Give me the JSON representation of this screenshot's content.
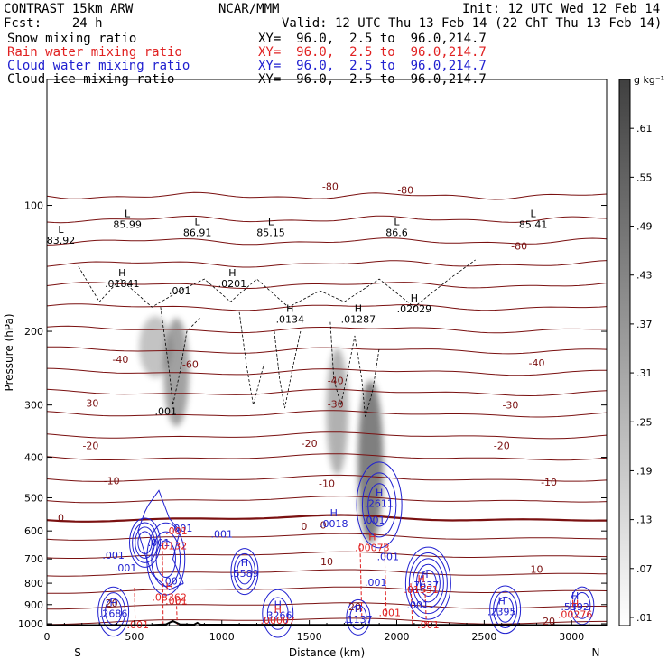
{
  "header": {
    "title_left": "CONTRAST 15km ARW",
    "title_center": "NCAR/MMM",
    "init": "Init: 12 UTC Wed 12 Feb 14",
    "fcst": "Fcst:    24 h",
    "valid": "Valid: 12 UTC Thu 13 Feb 14 (22 ChT Thu 13 Feb 14)"
  },
  "fields": [
    {
      "name": "Snow mixing ratio",
      "xy": "XY=  96.0,  2.5 to  96.0,214.7",
      "color": "#000000"
    },
    {
      "name": "Rain water mixing ratio",
      "xy": "XY=  96.0,  2.5 to  96.0,214.7",
      "color": "#e02020"
    },
    {
      "name": "Cloud water mixing ratio",
      "xy": "XY=  96.0,  2.5 to  96.0,214.7",
      "color": "#2020d0"
    },
    {
      "name": "Cloud ice mixing ratio",
      "xy": "XY=  96.0,  2.5 to  96.0,214.7",
      "color": "#000000"
    }
  ],
  "chart_data": {
    "type": "contour cross-section",
    "xlabel": "Distance (km)",
    "ylabel": "Pressure (hPa)",
    "xlim": [
      0,
      3200
    ],
    "ylim": [
      1010,
      50
    ],
    "y_scale": "log",
    "x_ticks": [
      0,
      500,
      1000,
      1500,
      2000,
      2500,
      3000
    ],
    "y_ticks": [
      100,
      200,
      300,
      400,
      500,
      600,
      700,
      800,
      900,
      1000
    ],
    "x_end_labels": {
      "left": "S",
      "right": "N"
    },
    "colorbar": {
      "unit": "g kg⁻¹",
      "ticks": [
        ".01",
        ".07",
        ".13",
        ".19",
        ".25",
        ".31",
        ".37",
        ".43",
        ".49",
        ".55",
        ".61"
      ],
      "values": [
        0.01,
        0.07,
        0.13,
        0.19,
        0.25,
        0.31,
        0.37,
        0.43,
        0.49,
        0.55,
        0.61
      ],
      "max": 0.67
    },
    "temperature_contours": [
      {
        "label": "-80",
        "x": 1620,
        "p": 90
      },
      {
        "label": "-80",
        "x": 2700,
        "p": 125
      },
      {
        "label": "-80",
        "x": 2050,
        "p": 92
      },
      {
        "label": "-60",
        "x": 820,
        "p": 240
      },
      {
        "label": "-40",
        "x": 420,
        "p": 233
      },
      {
        "label": "-40",
        "x": 1650,
        "p": 262
      },
      {
        "label": "-40",
        "x": 2800,
        "p": 238
      },
      {
        "label": "-30",
        "x": 250,
        "p": 297
      },
      {
        "label": "-30",
        "x": 1650,
        "p": 298
      },
      {
        "label": "-30",
        "x": 2650,
        "p": 300
      },
      {
        "label": "-20",
        "x": 250,
        "p": 375
      },
      {
        "label": "-20",
        "x": 1500,
        "p": 370
      },
      {
        "label": "-20",
        "x": 2600,
        "p": 375
      },
      {
        "label": "-10",
        "x": 370,
        "p": 455
      },
      {
        "label": "-10",
        "x": 1600,
        "p": 462
      },
      {
        "label": "-10",
        "x": 2870,
        "p": 458
      },
      {
        "label": "0",
        "x": 80,
        "p": 558
      },
      {
        "label": "0",
        "x": 1470,
        "p": 585
      },
      {
        "label": "0",
        "x": 1580,
        "p": 580
      },
      {
        "label": "10",
        "x": 1600,
        "p": 710
      },
      {
        "label": "10",
        "x": 2800,
        "p": 740
      },
      {
        "label": "20",
        "x": 370,
        "p": 893
      },
      {
        "label": "20",
        "x": 1760,
        "p": 910
      },
      {
        "label": "20",
        "x": 2870,
        "p": 985
      }
    ],
    "extrema_snow_ice": [
      {
        "type": "L",
        "value": "83.92",
        "x": 80,
        "p": 120
      },
      {
        "type": "L",
        "value": "85.99",
        "x": 460,
        "p": 110
      },
      {
        "type": "L",
        "value": "86.91",
        "x": 860,
        "p": 115
      },
      {
        "type": "L",
        "value": "85.15",
        "x": 1280,
        "p": 115
      },
      {
        "type": "L",
        "value": "86.6",
        "x": 2000,
        "p": 115
      },
      {
        "type": "L",
        "value": "85.41",
        "x": 2780,
        "p": 110
      },
      {
        "type": "H",
        "value": ".01841",
        "x": 430,
        "p": 152
      },
      {
        "type": "H",
        "value": ".0201",
        "x": 1060,
        "p": 152
      },
      {
        "type": "H",
        "value": ".0134",
        "x": 1390,
        "p": 185
      },
      {
        "type": "H",
        "value": ".01287",
        "x": 1780,
        "p": 185
      },
      {
        "type": "H",
        "value": ".02029",
        "x": 2100,
        "p": 175
      },
      {
        "type": "",
        "value": ".001",
        "x": 760,
        "p": 160
      },
      {
        "type": "",
        "value": ".001",
        "x": 680,
        "p": 310
      }
    ],
    "extrema_cloud_water": [
      {
        "type": "H",
        "value": ".0018",
        "x": 1640,
        "p": 570
      },
      {
        "type": "H",
        "value": ".2611",
        "x": 1900,
        "p": 510
      },
      {
        "type": "H",
        "value": ".5589",
        "x": 1130,
        "p": 750
      },
      {
        "type": "H",
        "value": ".7637",
        "x": 2160,
        "p": 800
      },
      {
        "type": "H",
        "value": ".2686",
        "x": 380,
        "p": 935
      },
      {
        "type": "H",
        "value": ".3266",
        "x": 1320,
        "p": 945
      },
      {
        "type": "H",
        "value": ".1137",
        "x": 1780,
        "p": 965
      },
      {
        "type": "H",
        "value": ".2395",
        "x": 2600,
        "p": 925
      },
      {
        "type": "H",
        "value": ".5392",
        "x": 3020,
        "p": 900
      },
      {
        "type": "",
        "value": ".001",
        "x": 380,
        "p": 685
      },
      {
        "type": "",
        "value": ".001",
        "x": 450,
        "p": 735
      },
      {
        "type": "",
        "value": ".001",
        "x": 1000,
        "p": 610
      },
      {
        "type": "",
        "value": ".001",
        "x": 720,
        "p": 790
      },
      {
        "type": "",
        "value": ".001",
        "x": 1870,
        "p": 565
      },
      {
        "type": "",
        "value": ".001",
        "x": 1950,
        "p": 690
      },
      {
        "type": "",
        "value": ".001",
        "x": 1880,
        "p": 795
      },
      {
        "type": "",
        "value": ".001",
        "x": 2120,
        "p": 900
      },
      {
        "type": "",
        "value": ".001",
        "x": 770,
        "p": 590
      },
      {
        "type": "",
        "value": ".001",
        "x": 640,
        "p": 640
      }
    ],
    "extrema_rain_water": [
      {
        "type": "H",
        "value": ".00073",
        "x": 1860,
        "p": 650
      },
      {
        "type": "H",
        "value": ".08362",
        "x": 700,
        "p": 855
      },
      {
        "type": "H",
        "value": ".01551",
        "x": 2140,
        "p": 820
      },
      {
        "type": "H",
        "value": ".00007",
        "x": 1320,
        "p": 970
      },
      {
        "type": "H",
        "value": ".00276",
        "x": 3020,
        "p": 940
      },
      {
        "type": "",
        "value": ".001",
        "x": 740,
        "p": 600
      },
      {
        "type": "",
        "value": ".001",
        "x": 740,
        "p": 880
      },
      {
        "type": "",
        "value": ".001",
        "x": 520,
        "p": 1005
      },
      {
        "type": "",
        "value": ".001",
        "x": 1960,
        "p": 940
      },
      {
        "type": "",
        "value": ".001",
        "x": 2180,
        "p": 1005
      },
      {
        "type": "",
        "value": ".0132",
        "x": 720,
        "p": 650
      }
    ]
  }
}
